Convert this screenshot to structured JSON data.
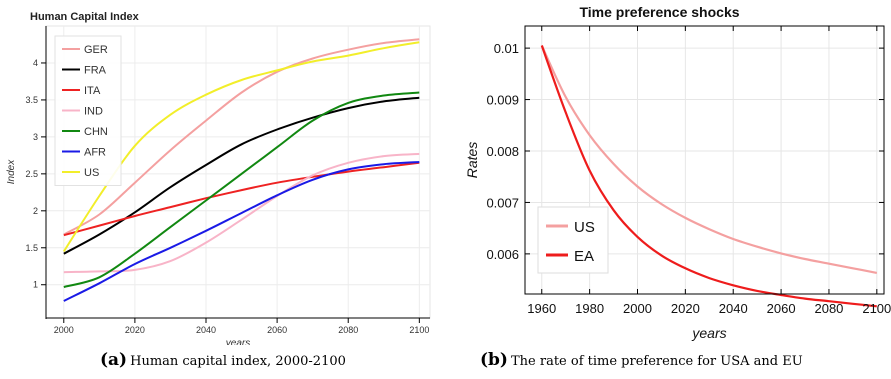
{
  "chart_data": [
    {
      "type": "line",
      "title": "Human Capital Index",
      "xlabel": "years",
      "ylabel": "Index",
      "xlim": [
        1995,
        2103
      ],
      "ylim": [
        0.55,
        4.5
      ],
      "xticks": [
        2000,
        2020,
        2040,
        2060,
        2080,
        2100
      ],
      "yticks": [
        1,
        1.5,
        2,
        2.5,
        3,
        3.5,
        4
      ],
      "grid": true,
      "legend": "top-left",
      "series": [
        {
          "name": "GER",
          "color": "#f4a0a0",
          "x": [
            2000,
            2010,
            2020,
            2030,
            2040,
            2050,
            2060,
            2070,
            2080,
            2090,
            2100
          ],
          "values": [
            1.68,
            1.95,
            2.38,
            2.82,
            3.22,
            3.6,
            3.88,
            4.06,
            4.18,
            4.27,
            4.32
          ]
        },
        {
          "name": "FRA",
          "color": "#000000",
          "x": [
            2000,
            2010,
            2020,
            2030,
            2040,
            2050,
            2060,
            2070,
            2080,
            2090,
            2100
          ],
          "values": [
            1.42,
            1.68,
            1.98,
            2.32,
            2.62,
            2.9,
            3.1,
            3.26,
            3.39,
            3.48,
            3.53
          ]
        },
        {
          "name": "ITA",
          "color": "#ee2222",
          "x": [
            2000,
            2010,
            2020,
            2030,
            2040,
            2050,
            2060,
            2070,
            2080,
            2090,
            2100
          ],
          "values": [
            1.67,
            1.8,
            1.93,
            2.05,
            2.17,
            2.28,
            2.38,
            2.46,
            2.53,
            2.59,
            2.65
          ]
        },
        {
          "name": "IND",
          "color": "#f8b4c8",
          "x": [
            2000,
            2010,
            2020,
            2030,
            2040,
            2050,
            2060,
            2070,
            2080,
            2090,
            2100
          ],
          "values": [
            1.17,
            1.18,
            1.2,
            1.32,
            1.57,
            1.88,
            2.2,
            2.48,
            2.65,
            2.74,
            2.77
          ]
        },
        {
          "name": "CHN",
          "color": "#118811",
          "x": [
            2000,
            2010,
            2020,
            2030,
            2040,
            2050,
            2060,
            2070,
            2080,
            2090,
            2100
          ],
          "values": [
            0.97,
            1.1,
            1.42,
            1.78,
            2.14,
            2.5,
            2.86,
            3.22,
            3.46,
            3.56,
            3.6
          ]
        },
        {
          "name": "AFR",
          "color": "#1a1ae6",
          "x": [
            2000,
            2010,
            2020,
            2030,
            2040,
            2050,
            2060,
            2070,
            2080,
            2090,
            2100
          ],
          "values": [
            0.78,
            1.02,
            1.28,
            1.5,
            1.73,
            1.97,
            2.21,
            2.42,
            2.56,
            2.63,
            2.66
          ]
        },
        {
          "name": "US",
          "color": "#f2ee2a",
          "x": [
            2000,
            2010,
            2020,
            2030,
            2040,
            2050,
            2060,
            2070,
            2080,
            2090,
            2100
          ],
          "values": [
            1.45,
            2.2,
            2.88,
            3.3,
            3.57,
            3.77,
            3.9,
            4.02,
            4.1,
            4.2,
            4.28
          ]
        }
      ]
    },
    {
      "type": "line",
      "title": "Time preference shocks",
      "xlabel": "years",
      "ylabel": "Rates",
      "xlim": [
        1953,
        2103
      ],
      "ylim": [
        0.00522,
        0.01043
      ],
      "xticks": [
        1960,
        1980,
        2000,
        2020,
        2040,
        2060,
        2080,
        2100
      ],
      "yticks": [
        0.006,
        0.007,
        0.008,
        0.009,
        0.01
      ],
      "ytick_labels": [
        "0.006",
        "0.007",
        "0.008",
        "0.009",
        "0.01"
      ],
      "grid": true,
      "legend": "bottom-left",
      "series": [
        {
          "name": "US",
          "color": "#f4a0a0",
          "x": [
            1960,
            1970,
            1980,
            1990,
            2000,
            2010,
            2020,
            2030,
            2040,
            2050,
            2060,
            2070,
            2080,
            2090,
            2100
          ],
          "values": [
            0.01005,
            0.00905,
            0.00831,
            0.00775,
            0.00731,
            0.00697,
            0.0067,
            0.00648,
            0.00629,
            0.00614,
            0.00601,
            0.0059,
            0.00581,
            0.00572,
            0.00563
          ]
        },
        {
          "name": "EA",
          "color": "#ee1c1c",
          "x": [
            1960,
            1970,
            1980,
            1990,
            2000,
            2010,
            2020,
            2030,
            2040,
            2050,
            2060,
            2070,
            2080,
            2090,
            2100
          ],
          "values": [
            0.01005,
            0.00875,
            0.00762,
            0.00685,
            0.00633,
            0.00597,
            0.00572,
            0.00553,
            0.00539,
            0.00528,
            0.0052,
            0.00513,
            0.00508,
            0.00503,
            0.00498
          ]
        }
      ]
    }
  ],
  "captions": {
    "a_tag": "(a)",
    "a_text": "Human capital index, 2000-2100",
    "b_tag": "(b)",
    "b_text": "The rate of time preference for USA and EU"
  }
}
